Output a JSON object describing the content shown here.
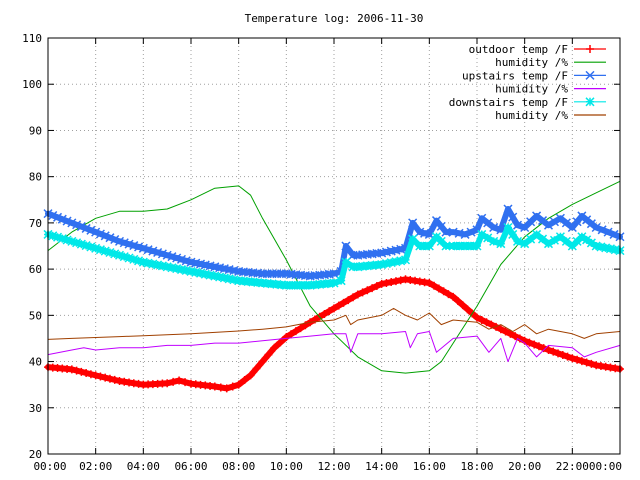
{
  "chart_data": {
    "type": "line",
    "title": "Temperature log: 2006-11-30",
    "xlabel": "",
    "ylabel": "",
    "xlim": [
      0,
      24
    ],
    "ylim": [
      20,
      110
    ],
    "x_ticks": [
      "00:00",
      "02:00",
      "04:00",
      "06:00",
      "08:00",
      "10:00",
      "12:00",
      "14:00",
      "16:00",
      "18:00",
      "20:00",
      "22:00",
      "00:00"
    ],
    "y_ticks": [
      "20",
      "30",
      "40",
      "50",
      "60",
      "70",
      "80",
      "90",
      "100",
      "110"
    ],
    "grid": true,
    "legend_position": "top-right",
    "series": [
      {
        "name": "outdoor temp /F",
        "color": "#ff0000",
        "marker": "plus",
        "width": 6,
        "points": [
          [
            0,
            38.8
          ],
          [
            1,
            38.3
          ],
          [
            2,
            37.0
          ],
          [
            3,
            35.8
          ],
          [
            4,
            35.0
          ],
          [
            5,
            35.3
          ],
          [
            5.5,
            35.9
          ],
          [
            6,
            35.2
          ],
          [
            7,
            34.6
          ],
          [
            7.5,
            34.2
          ],
          [
            8,
            35.0
          ],
          [
            8.5,
            37.0
          ],
          [
            9,
            40.0
          ],
          [
            9.5,
            43.0
          ],
          [
            10,
            45.3
          ],
          [
            11,
            48.5
          ],
          [
            12,
            51.5
          ],
          [
            13,
            54.5
          ],
          [
            14,
            56.8
          ],
          [
            15,
            57.8
          ],
          [
            16,
            57.0
          ],
          [
            17,
            54.0
          ],
          [
            18,
            49.5
          ],
          [
            19,
            47.0
          ],
          [
            20,
            44.5
          ],
          [
            21,
            42.5
          ],
          [
            22,
            40.7
          ],
          [
            23,
            39.2
          ],
          [
            24,
            38.4
          ]
        ]
      },
      {
        "name": "humidity /%",
        "color": "#00a000",
        "marker": "none",
        "width": 1,
        "points": [
          [
            0,
            64
          ],
          [
            0.5,
            66
          ],
          [
            1,
            68
          ],
          [
            2,
            71
          ],
          [
            3,
            72.5
          ],
          [
            4,
            72.5
          ],
          [
            5,
            73
          ],
          [
            6,
            75
          ],
          [
            7,
            77.5
          ],
          [
            8,
            78
          ],
          [
            8.5,
            76
          ],
          [
            9,
            71
          ],
          [
            10,
            62
          ],
          [
            11,
            52
          ],
          [
            12,
            46
          ],
          [
            13,
            41
          ],
          [
            14,
            38
          ],
          [
            15,
            37.5
          ],
          [
            16,
            38
          ],
          [
            16.5,
            40
          ],
          [
            17,
            44
          ],
          [
            18,
            52
          ],
          [
            19,
            61
          ],
          [
            20,
            67
          ],
          [
            21,
            71
          ],
          [
            22,
            74
          ],
          [
            23,
            76.5
          ],
          [
            24,
            79
          ]
        ]
      },
      {
        "name": "upstairs temp /F",
        "color": "#3070f0",
        "marker": "cross",
        "width": 6,
        "points": [
          [
            0,
            72
          ],
          [
            1,
            70
          ],
          [
            2,
            68
          ],
          [
            3,
            66
          ],
          [
            4,
            64.5
          ],
          [
            5,
            63
          ],
          [
            6,
            61.5
          ],
          [
            7,
            60.5
          ],
          [
            8,
            59.5
          ],
          [
            9,
            59
          ],
          [
            10,
            59
          ],
          [
            11,
            58.5
          ],
          [
            12,
            59
          ],
          [
            12.3,
            59.5
          ],
          [
            12.5,
            65
          ],
          [
            12.8,
            63
          ],
          [
            13,
            63
          ],
          [
            14,
            63.5
          ],
          [
            15,
            64.5
          ],
          [
            15.3,
            70
          ],
          [
            15.6,
            68
          ],
          [
            16,
            67.5
          ],
          [
            16.3,
            70.5
          ],
          [
            16.7,
            68
          ],
          [
            17,
            68
          ],
          [
            17.5,
            67.5
          ],
          [
            18,
            68.5
          ],
          [
            18.2,
            71
          ],
          [
            18.7,
            69
          ],
          [
            19,
            68.5
          ],
          [
            19.3,
            73
          ],
          [
            19.7,
            69.5
          ],
          [
            20,
            69
          ],
          [
            20.5,
            71.5
          ],
          [
            21,
            69.5
          ],
          [
            21.5,
            71
          ],
          [
            22,
            69
          ],
          [
            22.4,
            71.5
          ],
          [
            23,
            69
          ],
          [
            23.5,
            68
          ],
          [
            24,
            67
          ]
        ]
      },
      {
        "name": "humidity /%",
        "color": "#c000ff",
        "marker": "none",
        "width": 1,
        "points": [
          [
            0,
            41.5
          ],
          [
            1,
            42.5
          ],
          [
            1.5,
            43
          ],
          [
            2,
            42.5
          ],
          [
            3,
            43
          ],
          [
            4,
            43
          ],
          [
            5,
            43.5
          ],
          [
            6,
            43.5
          ],
          [
            7,
            44
          ],
          [
            8,
            44
          ],
          [
            9,
            44.5
          ],
          [
            10,
            45
          ],
          [
            11,
            45.5
          ],
          [
            12,
            46
          ],
          [
            12.5,
            46
          ],
          [
            12.7,
            42
          ],
          [
            13,
            46
          ],
          [
            14,
            46
          ],
          [
            15,
            46.5
          ],
          [
            15.2,
            43
          ],
          [
            15.5,
            46
          ],
          [
            16,
            46.5
          ],
          [
            16.3,
            42
          ],
          [
            17,
            45
          ],
          [
            18,
            45.5
          ],
          [
            18.5,
            42
          ],
          [
            19,
            45
          ],
          [
            19.3,
            40
          ],
          [
            19.7,
            45
          ],
          [
            20,
            44
          ],
          [
            20.5,
            41
          ],
          [
            21,
            43.5
          ],
          [
            22,
            43
          ],
          [
            22.5,
            41
          ],
          [
            23,
            42
          ],
          [
            24,
            43.5
          ]
        ]
      },
      {
        "name": "downstairs temp /F",
        "color": "#00e8e8",
        "marker": "star",
        "width": 6,
        "points": [
          [
            0,
            67.5
          ],
          [
            1,
            66
          ],
          [
            2,
            64.5
          ],
          [
            3,
            63
          ],
          [
            4,
            61.5
          ],
          [
            5,
            60.5
          ],
          [
            6,
            59.5
          ],
          [
            7,
            58.5
          ],
          [
            8,
            57.5
          ],
          [
            9,
            57
          ],
          [
            10,
            56.5
          ],
          [
            11,
            56.5
          ],
          [
            12,
            57
          ],
          [
            12.3,
            57.5
          ],
          [
            12.5,
            61.5
          ],
          [
            12.8,
            60.5
          ],
          [
            13,
            60.5
          ],
          [
            14,
            61
          ],
          [
            15,
            62
          ],
          [
            15.3,
            66.5
          ],
          [
            15.6,
            65
          ],
          [
            16,
            65
          ],
          [
            16.3,
            67
          ],
          [
            16.7,
            65
          ],
          [
            17,
            65
          ],
          [
            18,
            65
          ],
          [
            18.2,
            67.5
          ],
          [
            18.7,
            66
          ],
          [
            19,
            65.5
          ],
          [
            19.3,
            69
          ],
          [
            19.7,
            66
          ],
          [
            20,
            65.5
          ],
          [
            20.5,
            67.5
          ],
          [
            21,
            65.5
          ],
          [
            21.5,
            67
          ],
          [
            22,
            65
          ],
          [
            22.4,
            67
          ],
          [
            23,
            65
          ],
          [
            24,
            64
          ]
        ]
      },
      {
        "name": "humidity /%",
        "color": "#a04000",
        "marker": "none",
        "width": 1,
        "points": [
          [
            0,
            44.8
          ],
          [
            1,
            45
          ],
          [
            2,
            45.2
          ],
          [
            3,
            45.4
          ],
          [
            4,
            45.6
          ],
          [
            5,
            45.8
          ],
          [
            6,
            46
          ],
          [
            7,
            46.3
          ],
          [
            8,
            46.6
          ],
          [
            9,
            47
          ],
          [
            10,
            47.5
          ],
          [
            11,
            48.5
          ],
          [
            12,
            49
          ],
          [
            12.5,
            50
          ],
          [
            12.7,
            48
          ],
          [
            13,
            49
          ],
          [
            14,
            50
          ],
          [
            14.5,
            51.5
          ],
          [
            15,
            50
          ],
          [
            15.5,
            49
          ],
          [
            16,
            50.5
          ],
          [
            16.5,
            48
          ],
          [
            17,
            49
          ],
          [
            18,
            48.5
          ],
          [
            18.5,
            47
          ],
          [
            19,
            48
          ],
          [
            19.5,
            46.5
          ],
          [
            20,
            48
          ],
          [
            20.5,
            46
          ],
          [
            21,
            47
          ],
          [
            22,
            46
          ],
          [
            22.5,
            45
          ],
          [
            23,
            46
          ],
          [
            24,
            46.5
          ]
        ]
      }
    ]
  }
}
